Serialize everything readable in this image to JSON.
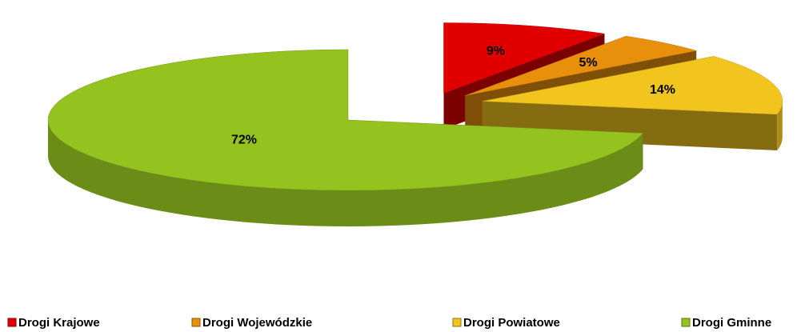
{
  "chart_data": {
    "type": "pie",
    "categories": [
      "Drogi Krajowe",
      "Drogi Wojewódzkie",
      "Drogi Powiatowe",
      "Drogi Gminne"
    ],
    "values": [
      9,
      5,
      14,
      72
    ],
    "value_labels": [
      "9%",
      "5%",
      "14%",
      "72%"
    ],
    "colors": [
      "#e00000",
      "#e8900c",
      "#f2c41e",
      "#94c21e"
    ],
    "legend": "bottom"
  }
}
